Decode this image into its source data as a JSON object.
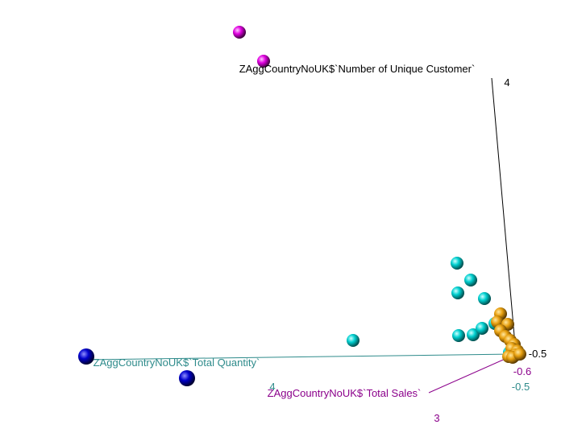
{
  "chart_data": {
    "type": "scatter",
    "projection": "3d",
    "title": "",
    "axes": {
      "z": {
        "label": "ZAggCountryNoUK$`Number of Unique Customer`",
        "tick_labels": [
          "4",
          "-0.5"
        ],
        "color": "#000000"
      },
      "x": {
        "label": "ZAggCountryNoUK$`Total Quantity`",
        "tick_labels": [
          "4",
          "-0.5"
        ],
        "color": "#2e8b8b"
      },
      "y": {
        "label": "ZAggCountryNoUK$`Total Sales`",
        "tick_labels": [
          "3",
          "-0.6"
        ],
        "color": "#8b008b"
      }
    },
    "groups": [
      {
        "color": "#e000e0",
        "count": 2
      },
      {
        "color": "#0000cc",
        "count": 2
      },
      {
        "color": "#00d0d0",
        "count": 10
      },
      {
        "color": "#e8a010",
        "count": 13
      }
    ],
    "grid": false,
    "legend": "none"
  }
}
